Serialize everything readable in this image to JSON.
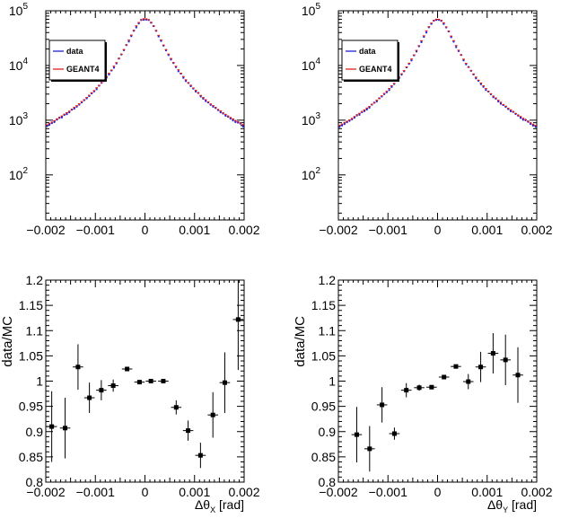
{
  "chart_data": [
    {
      "id": "top-left",
      "type": "scatter",
      "title": "",
      "xlabel": "",
      "ylabel": "",
      "xlim": [
        -0.002,
        0.002
      ],
      "ylim": [
        15,
        100000
      ],
      "yscale": "log",
      "xticks": [
        -0.002,
        -0.001,
        0,
        0.001,
        0.002
      ],
      "xtick_labels": [
        "−0.002",
        "−0.001",
        "0",
        "0.001",
        "0.002"
      ],
      "yticks": [
        100,
        1000,
        10000,
        100000
      ],
      "ytick_labels": [
        {
          "base": "10",
          "exp": "2"
        },
        {
          "base": "10",
          "exp": "3"
        },
        {
          "base": "10",
          "exp": "4"
        },
        {
          "base": "10",
          "exp": "5"
        }
      ],
      "legend": {
        "position": "top-left",
        "entries": [
          {
            "label": "data",
            "color": "#1f1fd6"
          },
          {
            "label": "GEANT4",
            "color": "#e02020"
          }
        ]
      },
      "series": [
        {
          "name": "data",
          "color": "#1f1fd6",
          "shape": "sharp",
          "width_param": 0.00015,
          "peak": 70000,
          "tail": 9,
          "noise": 0.1,
          "seed": 11
        },
        {
          "name": "GEANT4",
          "color": "#e02020",
          "shape": "sharp",
          "width_param": 0.00015,
          "peak": 72000,
          "tail": 9,
          "noise": 0.03,
          "seed": 12
        }
      ],
      "n_bins": 80
    },
    {
      "id": "top-right",
      "type": "scatter",
      "title": "",
      "xlabel": "",
      "ylabel": "",
      "xlim": [
        -0.002,
        0.002
      ],
      "ylim": [
        15,
        100000
      ],
      "yscale": "log",
      "xticks": [
        -0.002,
        -0.001,
        0,
        0.001,
        0.002
      ],
      "xtick_labels": [
        "−0.002",
        "−0.001",
        "0",
        "0.001",
        "0.002"
      ],
      "yticks": [
        100,
        1000,
        10000,
        100000
      ],
      "ytick_labels": [
        {
          "base": "10",
          "exp": "2"
        },
        {
          "base": "10",
          "exp": "3"
        },
        {
          "base": "10",
          "exp": "4"
        },
        {
          "base": "10",
          "exp": "5"
        }
      ],
      "legend": {
        "position": "top-left",
        "entries": [
          {
            "label": "data",
            "color": "#1f1fd6"
          },
          {
            "label": "GEANT4",
            "color": "#e02020"
          }
        ]
      },
      "series": [
        {
          "name": "data",
          "color": "#1f1fd6",
          "shape": "sharp",
          "width_param": 0.00015,
          "peak": 68000,
          "tail": 9,
          "noise": 0.1,
          "seed": 21
        },
        {
          "name": "GEANT4",
          "color": "#e02020",
          "shape": "sharp",
          "width_param": 0.00015,
          "peak": 70000,
          "tail": 9,
          "noise": 0.03,
          "seed": 22
        }
      ],
      "n_bins": 80
    },
    {
      "id": "bottom-left",
      "type": "scatter",
      "title": "",
      "xlabel": {
        "prefix": "Δθ",
        "sub": "X",
        "suffix": " [rad]"
      },
      "ylabel": "data/MC",
      "xlim": [
        -0.002,
        0.002
      ],
      "ylim": [
        0.8,
        1.2
      ],
      "yscale": "linear",
      "xticks": [
        -0.002,
        -0.001,
        0,
        0.001,
        0.002
      ],
      "xtick_labels": [
        "−0.002",
        "−0.001",
        "0",
        "0.001",
        "0.002"
      ],
      "yticks": [
        0.8,
        0.85,
        0.9,
        0.95,
        1.0,
        1.05,
        1.1,
        1.15,
        1.2
      ],
      "ytick_labels": [
        "0.8",
        "0.85",
        "0.9",
        "0.95",
        "1",
        "1.05",
        "1.1",
        "1.15",
        "1.2"
      ],
      "bin_half_width": 0.000105,
      "points": [
        {
          "x": -0.00188,
          "y": 0.91,
          "err": 0.07
        },
        {
          "x": -0.00161,
          "y": 0.907,
          "err": 0.06
        },
        {
          "x": -0.00135,
          "y": 1.028,
          "err": 0.045
        },
        {
          "x": -0.00112,
          "y": 0.967,
          "err": 0.03
        },
        {
          "x": -0.00088,
          "y": 0.982,
          "err": 0.02
        },
        {
          "x": -0.00064,
          "y": 0.991,
          "err": 0.012
        },
        {
          "x": -0.00036,
          "y": 1.024,
          "err": 0.004
        },
        {
          "x": -0.00011,
          "y": 0.998,
          "err": 0.002
        },
        {
          "x": 0.00012,
          "y": 1.0,
          "err": 0.002
        },
        {
          "x": 0.00037,
          "y": 1.0,
          "err": 0.004
        },
        {
          "x": 0.00063,
          "y": 0.948,
          "err": 0.014
        },
        {
          "x": 0.00087,
          "y": 0.902,
          "err": 0.02
        },
        {
          "x": 0.00112,
          "y": 0.853,
          "err": 0.025
        },
        {
          "x": 0.00137,
          "y": 0.933,
          "err": 0.045
        },
        {
          "x": 0.00161,
          "y": 0.997,
          "err": 0.06
        },
        {
          "x": 0.00188,
          "y": 1.122,
          "err": 0.1
        }
      ]
    },
    {
      "id": "bottom-right",
      "type": "scatter",
      "title": "",
      "xlabel": {
        "prefix": "Δθ",
        "sub": "Y",
        "suffix": " [rad]"
      },
      "ylabel": "data/MC",
      "xlim": [
        -0.002,
        0.002
      ],
      "ylim": [
        0.8,
        1.2
      ],
      "yscale": "linear",
      "xticks": [
        -0.002,
        -0.001,
        0,
        0.001,
        0.002
      ],
      "xtick_labels": [
        "−0.002",
        "−0.001",
        "0",
        "0.001",
        "0.002"
      ],
      "yticks": [
        0.8,
        0.85,
        0.9,
        0.95,
        1.0,
        1.05,
        1.1,
        1.15,
        1.2
      ],
      "ytick_labels": [
        "0.8",
        "0.85",
        "0.9",
        "0.95",
        "1",
        "1.05",
        "1.1",
        "1.15",
        "1.2"
      ],
      "bin_half_width": 0.000105,
      "points": [
        {
          "x": -0.00163,
          "y": 0.894,
          "err": 0.055
        },
        {
          "x": -0.00137,
          "y": 0.866,
          "err": 0.045
        },
        {
          "x": -0.00112,
          "y": 0.953,
          "err": 0.035
        },
        {
          "x": -0.00087,
          "y": 0.896,
          "err": 0.012
        },
        {
          "x": -0.00063,
          "y": 0.982,
          "err": 0.014
        },
        {
          "x": -0.00037,
          "y": 0.987,
          "err": 0.006
        },
        {
          "x": -0.00012,
          "y": 0.988,
          "err": 0.004
        },
        {
          "x": 0.00013,
          "y": 1.008,
          "err": 0.004
        },
        {
          "x": 0.00037,
          "y": 1.029,
          "err": 0.004
        },
        {
          "x": 0.00062,
          "y": 0.999,
          "err": 0.015
        },
        {
          "x": 0.00087,
          "y": 1.028,
          "err": 0.03
        },
        {
          "x": 0.00112,
          "y": 1.055,
          "err": 0.04
        },
        {
          "x": 0.00137,
          "y": 1.042,
          "err": 0.05
        },
        {
          "x": 0.00162,
          "y": 1.012,
          "err": 0.055
        }
      ]
    }
  ]
}
